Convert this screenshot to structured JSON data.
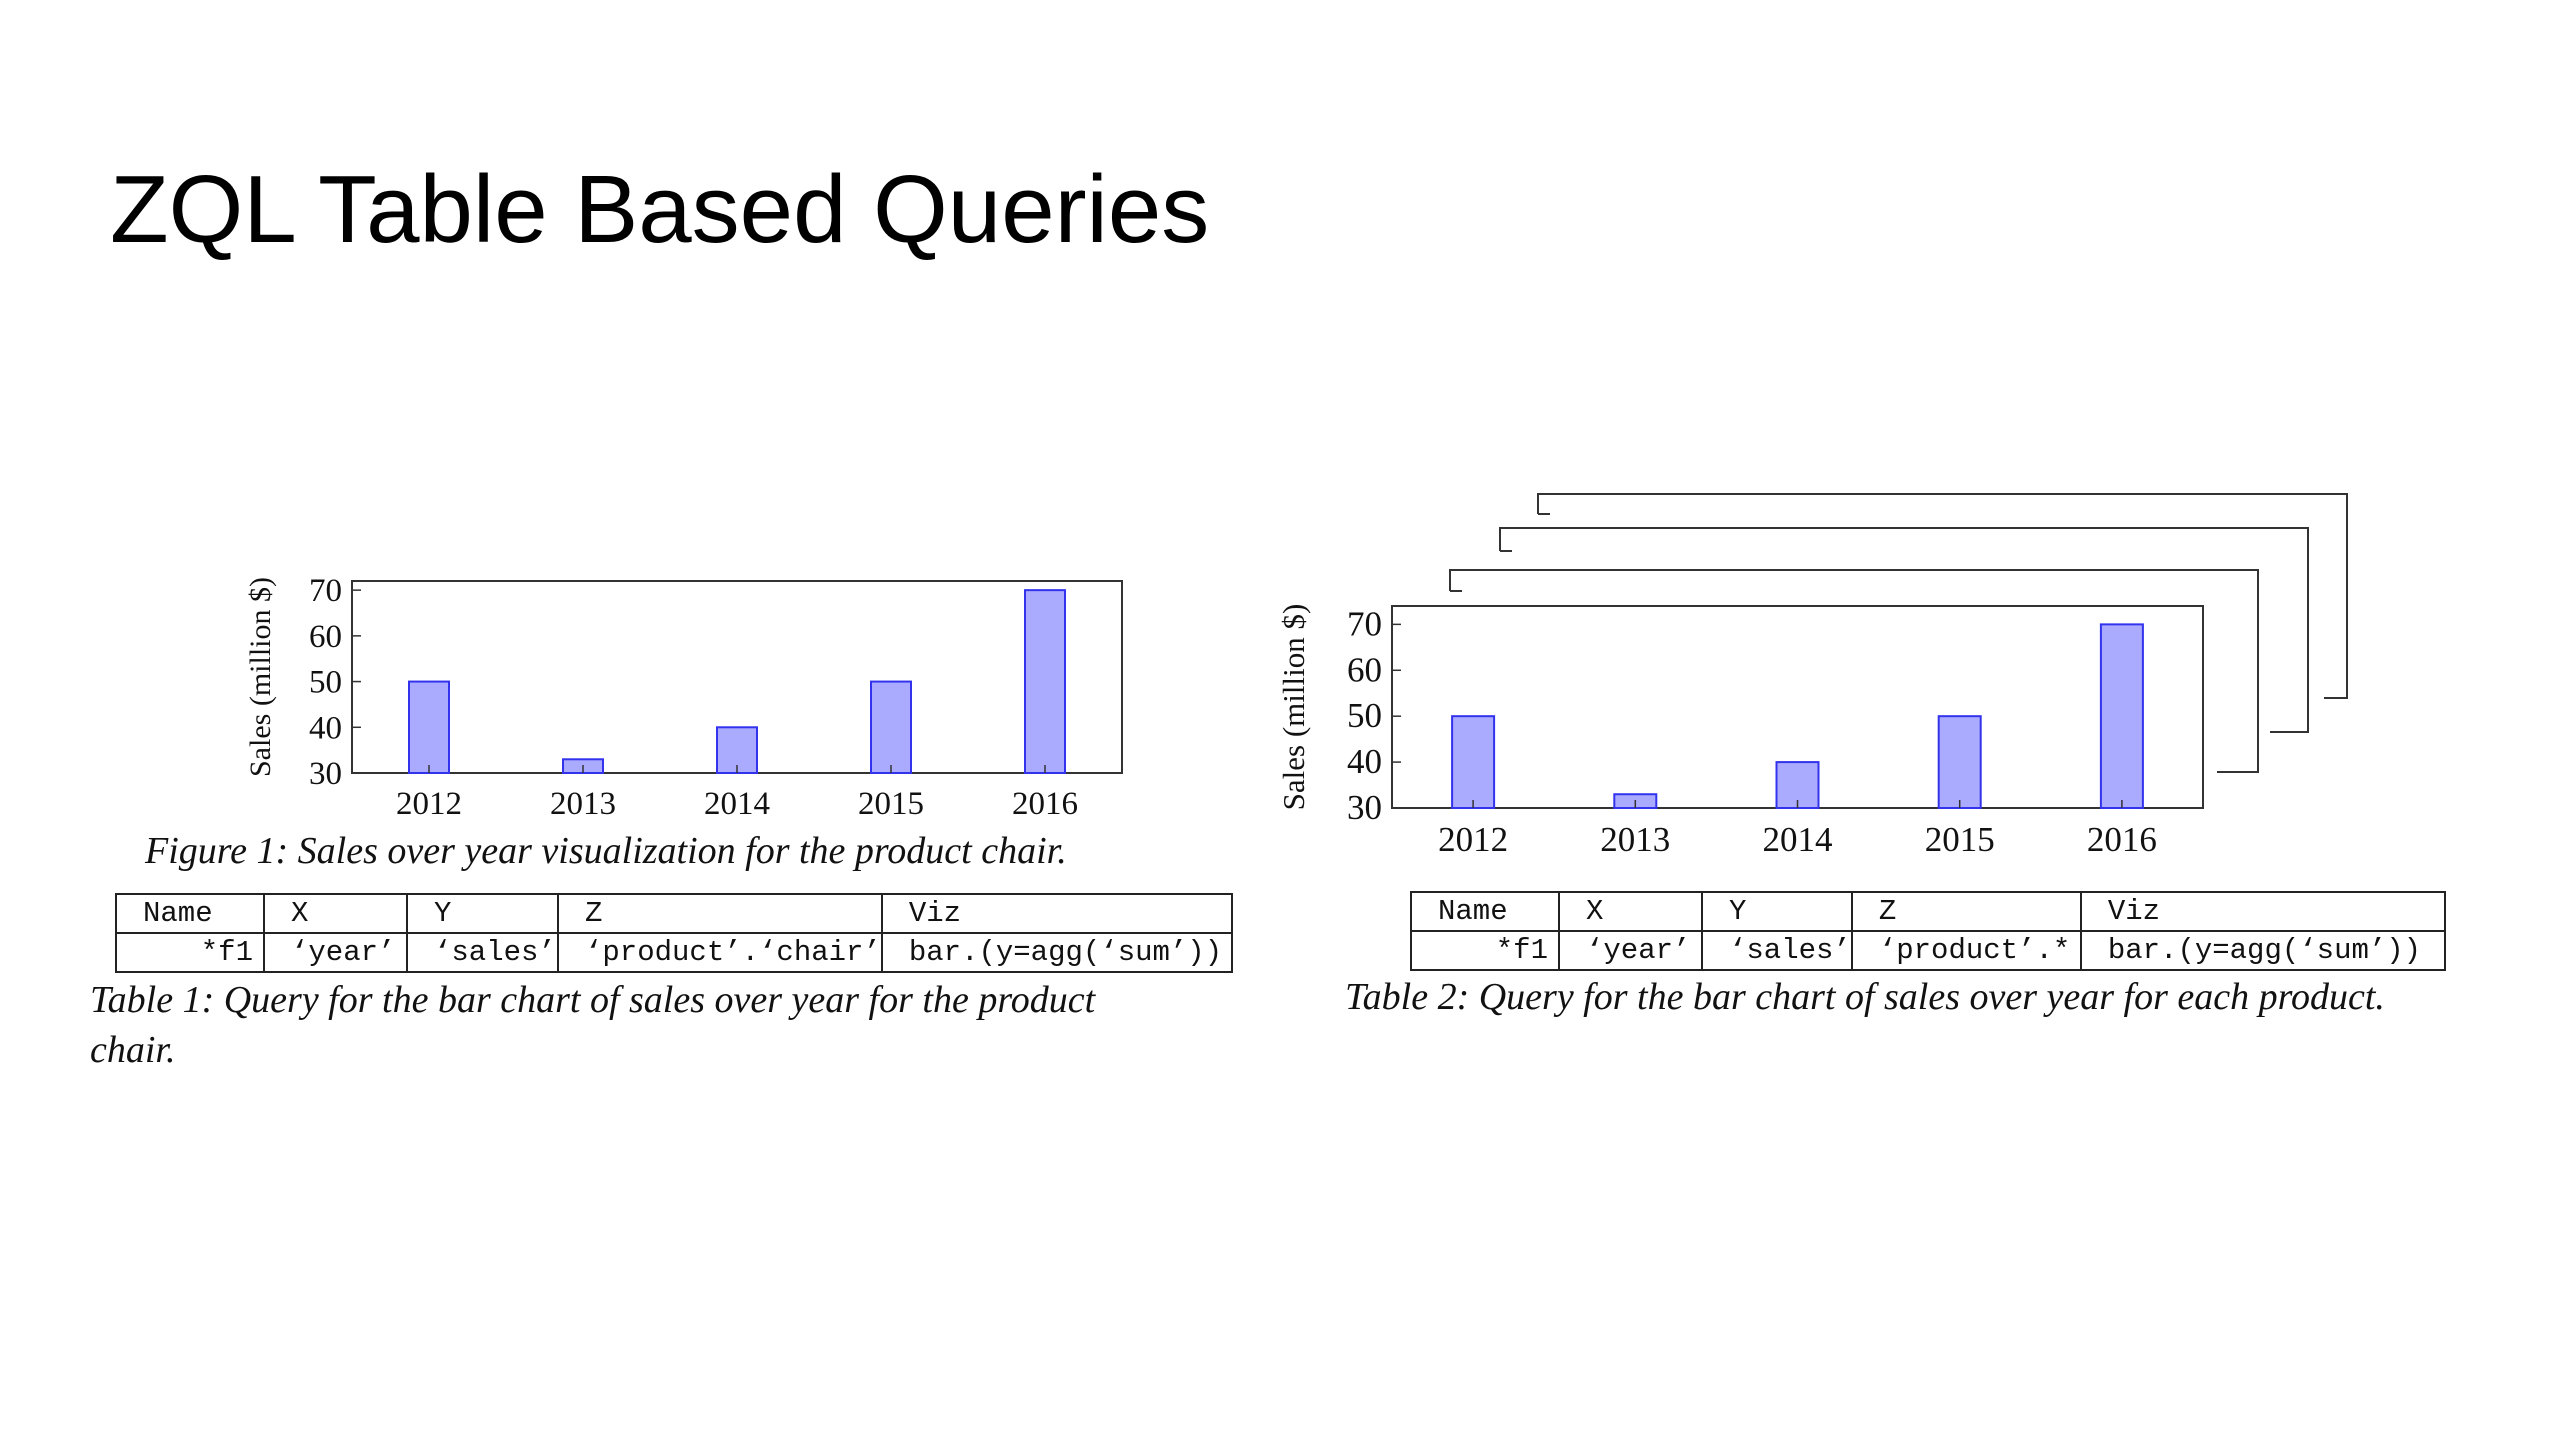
{
  "slide": {
    "title": "ZQL Table Based Queries"
  },
  "figure1": {
    "caption": "Figure 1:  Sales over year visualization for the product chair."
  },
  "table1": {
    "caption_line1": "Table 1:  Query for the bar chart of sales over year for the product",
    "caption_line2": "chair.",
    "headers": [
      "Name",
      "X",
      "Y",
      "Z",
      "Viz"
    ],
    "row": [
      "*f1",
      "‘year’",
      "‘sales’",
      "‘product’.‘chair’",
      "bar.(y=agg(‘sum’))"
    ]
  },
  "table2": {
    "caption": "Table 2:  Query for the bar chart of sales over year for each product.",
    "headers": [
      "Name",
      "X",
      "Y",
      "Z",
      "Viz"
    ],
    "row": [
      "*f1",
      "‘year’",
      "‘sales’",
      "‘product’.*",
      "bar.(y=agg(‘sum’))"
    ]
  },
  "colors": {
    "bar_fill": "#aaaaff",
    "bar_stroke": "#3333ee",
    "axis": "#333333"
  },
  "chart_data": [
    {
      "type": "bar",
      "categories": [
        "2012",
        "2013",
        "2014",
        "2015",
        "2016"
      ],
      "values": [
        50,
        33,
        40,
        50,
        70
      ],
      "title": "",
      "xlabel": "",
      "ylabel": "Sales (million $)",
      "ylim": [
        30,
        72
      ],
      "yticks": [
        30,
        40,
        50,
        60,
        70
      ],
      "grid": false
    },
    {
      "type": "bar",
      "categories": [
        "2012",
        "2013",
        "2014",
        "2015",
        "2016"
      ],
      "values": [
        50,
        33,
        40,
        50,
        70
      ],
      "title": "",
      "xlabel": "",
      "ylabel": "Sales (million $)",
      "ylim": [
        30,
        74
      ],
      "yticks": [
        30,
        40,
        50,
        60,
        70
      ],
      "grid": false
    }
  ]
}
